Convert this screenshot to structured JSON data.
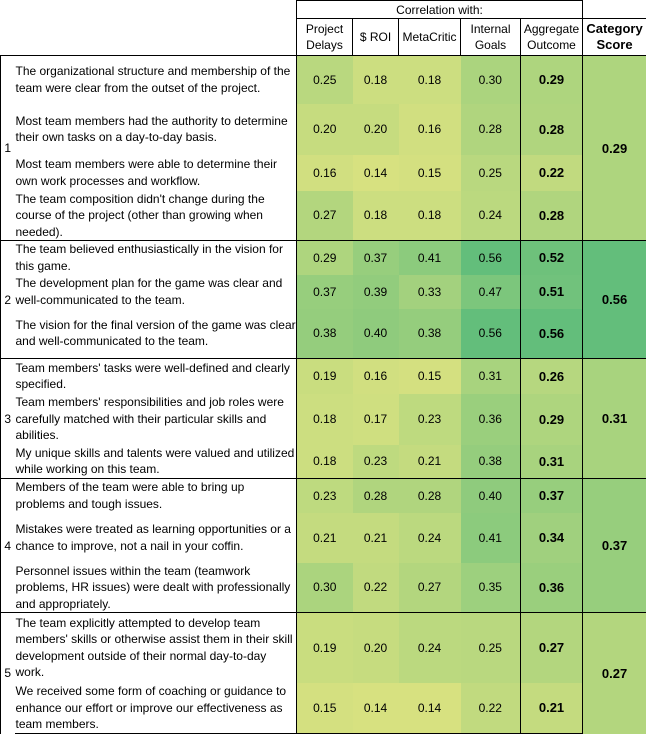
{
  "header": {
    "correlation_with": "Correlation with:",
    "columns": [
      "Project Delays",
      "$ ROI",
      "MetaCritic",
      "Internal Goals",
      "Aggregate Outcome"
    ],
    "category_score": "Category Score"
  },
  "colors": {
    "low": "#d7e180",
    "high": "#63be7b"
  },
  "groups": [
    {
      "number": "1",
      "score": "0.29",
      "rows": [
        {
          "text": "The organizational structure and membership of the team were clear from the outset of the project.",
          "values": [
            "0.25",
            "0.18",
            "0.18",
            "0.30",
            "0.29"
          ]
        },
        {
          "text": "Most team members had the authority to determine their own tasks on a day-to-day basis.",
          "values": [
            "0.20",
            "0.20",
            "0.16",
            "0.28",
            "0.28"
          ]
        },
        {
          "text": "Most team members were able to determine their own work processes and workflow.",
          "values": [
            "0.16",
            "0.14",
            "0.15",
            "0.25",
            "0.22"
          ]
        },
        {
          "text": "The team composition didn't change during the course of the project (other than growing when needed).",
          "values": [
            "0.27",
            "0.18",
            "0.18",
            "0.24",
            "0.28"
          ]
        }
      ]
    },
    {
      "number": "2",
      "score": "0.56",
      "rows": [
        {
          "text": "The team believed enthusiastically in the vision for this game.",
          "values": [
            "0.29",
            "0.37",
            "0.41",
            "0.56",
            "0.52"
          ]
        },
        {
          "text": "The development plan for the game was clear and well-communicated to the team.",
          "values": [
            "0.37",
            "0.39",
            "0.33",
            "0.47",
            "0.51"
          ]
        },
        {
          "text": "The vision for the final version of the game was clear and well-communicated to the team.",
          "values": [
            "0.38",
            "0.40",
            "0.38",
            "0.56",
            "0.56"
          ]
        }
      ]
    },
    {
      "number": "3",
      "score": "0.31",
      "rows": [
        {
          "text": "Team members' tasks were well-defined and clearly specified.",
          "values": [
            "0.19",
            "0.16",
            "0.15",
            "0.31",
            "0.26"
          ]
        },
        {
          "text": "Team members' responsibilities and job roles were carefully matched with their particular skills and abilities.",
          "values": [
            "0.18",
            "0.17",
            "0.23",
            "0.36",
            "0.29"
          ]
        },
        {
          "text": "My unique skills and talents were valued and utilized while working on this team.",
          "values": [
            "0.18",
            "0.23",
            "0.21",
            "0.38",
            "0.31"
          ]
        }
      ]
    },
    {
      "number": "4",
      "score": "0.37",
      "rows": [
        {
          "text": "Members of the team were able to bring up problems and tough issues.",
          "values": [
            "0.23",
            "0.28",
            "0.28",
            "0.40",
            "0.37"
          ]
        },
        {
          "text": "Mistakes were treated as learning opportunities or a chance to improve, not a nail in your coffin.",
          "values": [
            "0.21",
            "0.21",
            "0.24",
            "0.41",
            "0.34"
          ]
        },
        {
          "text": "Personnel issues within the team (teamwork problems, HR issues) were dealt with professionally and appropriately.",
          "values": [
            "0.30",
            "0.22",
            "0.27",
            "0.35",
            "0.36"
          ]
        }
      ]
    },
    {
      "number": "5",
      "score": "0.27",
      "rows": [
        {
          "text": "The team explicitly attempted to develop team members' skills or otherwise assist them in their skill development outside of their normal day-to-day work.",
          "values": [
            "0.19",
            "0.20",
            "0.24",
            "0.25",
            "0.27"
          ]
        },
        {
          "text": "We received some form of coaching or guidance to enhance our effort or improve our effectiveness as team members.",
          "values": [
            "0.15",
            "0.14",
            "0.14",
            "0.22",
            "0.21"
          ]
        }
      ]
    }
  ]
}
